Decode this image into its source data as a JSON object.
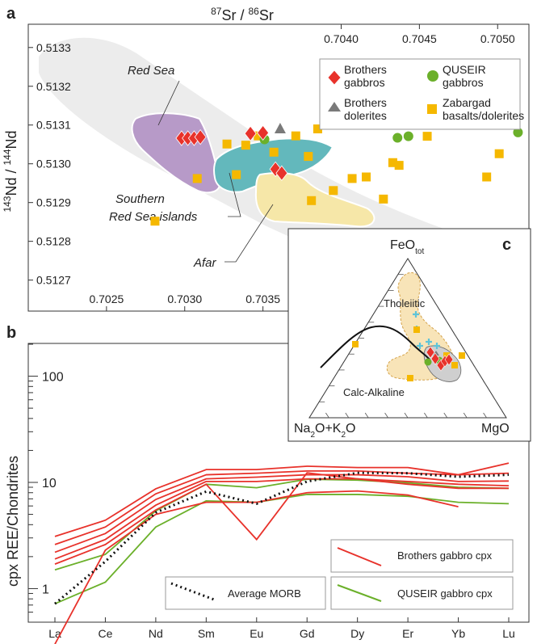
{
  "figure": {
    "panel_a_label": "a",
    "panel_b_label": "b",
    "panel_c_label": "c"
  },
  "chart_data": [
    {
      "id": "a",
      "type": "scatter",
      "xlabel": "87Sr / 86Sr",
      "ylabel": "143Nd / 144Nd",
      "xlim": [
        0.702,
        0.7052
      ],
      "ylim": [
        0.51262,
        0.51336
      ],
      "x_ticks_bottom": [
        "0.7025",
        "0.7030",
        "0.7035"
      ],
      "x_ticks_top": [
        "0.7040",
        "0.7045",
        "0.7050"
      ],
      "y_ticks": [
        "0.5133",
        "0.5132",
        "0.5131",
        "0.5130",
        "0.5129",
        "0.5128",
        "0.5127"
      ],
      "region_labels": [
        "Red Sea",
        "Southern",
        "Red Sea islands",
        "Afar"
      ],
      "legend_position": "top-right",
      "colors": {
        "red": "#e8322b",
        "green": "#6bb02a",
        "gray": "#7a7a7a",
        "yellow": "#f5b800",
        "purple": "#b79ac8",
        "teal": "#63b8bc",
        "lightyellow": "#f6e7a8",
        "field": "#ececec"
      },
      "series": [
        {
          "name": "Brothers gabbros",
          "marker": "diamond",
          "color": "#e8322b",
          "x": [
            0.70298,
            0.70302,
            0.70306,
            0.7031,
            0.70342,
            0.7035,
            0.70358,
            0.70362
          ],
          "y": [
            0.513066,
            0.513066,
            0.513066,
            0.513069,
            0.513078,
            0.51308,
            0.512986,
            0.512976
          ]
        },
        {
          "name": "QUSEIR gabbros",
          "marker": "circle",
          "color": "#6bb02a",
          "x": [
            0.70351,
            0.70436,
            0.70443,
            0.70513
          ],
          "y": [
            0.513063,
            0.513067,
            0.513071,
            0.513081
          ]
        },
        {
          "name": "Brothers dolerites",
          "marker": "triangle",
          "color": "#7a7a7a",
          "x": [
            0.70361
          ],
          "y": [
            0.513091
          ]
        },
        {
          "name": "Zabargad basalts/dolerites",
          "marker": "square",
          "color": "#f5b800",
          "x": [
            0.70281,
            0.70308,
            0.70327,
            0.70333,
            0.70339,
            0.70347,
            0.70357,
            0.70371,
            0.70379,
            0.70381,
            0.70385,
            0.70395,
            0.70407,
            0.70416,
            0.70427,
            0.70433,
            0.70437,
            0.70455,
            0.70493,
            0.70501
          ],
          "y": [
            0.512852,
            0.512962,
            0.513051,
            0.512972,
            0.513048,
            0.513072,
            0.51303,
            0.513072,
            0.513019,
            0.512905,
            0.51309,
            0.512931,
            0.512962,
            0.512966,
            0.512909,
            0.513003,
            0.512996,
            0.513071,
            0.512966,
            0.513026
          ]
        }
      ]
    },
    {
      "id": "b",
      "type": "line",
      "ylabel": "cpx REE/Chondrites",
      "ylim": [
        0.5,
        200
      ],
      "yscale": "log",
      "y_ticks": [
        "1",
        "10",
        "100"
      ],
      "categories": [
        "La",
        "Ce",
        "Nd",
        "Sm",
        "Eu",
        "Gd",
        "Dy",
        "Er",
        "Yb",
        "Lu"
      ],
      "legend": {
        "brothers": "Brothers gabbro cpx",
        "quseir": "QUSEIR gabbro cpx",
        "morb": "Average MORB"
      },
      "series": [
        {
          "group": "brothers",
          "color": "#e8322b",
          "values": [
            3.1,
            4.4,
            8.7,
            13.2,
            13.2,
            14.2,
            13.8,
            13.8,
            11.8,
            15.2
          ]
        },
        {
          "group": "brothers",
          "color": "#e8322b",
          "values": [
            2.6,
            3.8,
            7.8,
            11.8,
            12.2,
            12.8,
            12.8,
            12.2,
            11.8,
            12.2
          ]
        },
        {
          "group": "brothers",
          "color": "#e8322b",
          "values": [
            2.2,
            3.3,
            6.9,
            10.8,
            11.2,
            11.8,
            11.8,
            11.3,
            10.2,
            10.3
          ]
        },
        {
          "group": "brothers",
          "color": "#e8322b",
          "values": [
            1.9,
            2.9,
            6.1,
            10.2,
            10.2,
            10.8,
            10.8,
            10.2,
            9.6,
            9.3
          ]
        },
        {
          "group": "brothers",
          "color": "#e8322b",
          "values": [
            1.7,
            2.6,
            5.5,
            9.6,
            2.9,
            12.3,
            10.8,
            9.6,
            8.8,
            8.8
          ]
        },
        {
          "group": "brothers",
          "color": "#e8322b",
          "values": [
            0.3,
            2.3,
            5.0,
            6.5,
            6.5,
            8.0,
            8.3,
            7.6,
            5.9,
            null
          ]
        },
        {
          "group": "quseir",
          "color": "#6bb02a",
          "values": [
            0.72,
            1.15,
            3.8,
            6.7,
            6.5,
            7.7,
            7.7,
            7.4,
            6.5,
            6.3
          ]
        },
        {
          "group": "quseir",
          "color": "#6bb02a",
          "values": [
            1.5,
            2.1,
            5.4,
            9.6,
            8.9,
            10.7,
            10.5,
            9.9,
            9.0,
            8.8
          ]
        },
        {
          "group": "morb",
          "color": "#111111",
          "values": [
            0.72,
            1.8,
            5.2,
            8.2,
            6.3,
            10.2,
            12.3,
            12.2,
            11.3,
            11.8
          ]
        }
      ]
    },
    {
      "id": "c",
      "type": "ternary",
      "vertices": {
        "top": "FeOtot",
        "left": "Na2O+K2O",
        "right": "MgO"
      },
      "field_labels": [
        "Tholeiitic",
        "Calc-Alkaline"
      ]
    }
  ]
}
